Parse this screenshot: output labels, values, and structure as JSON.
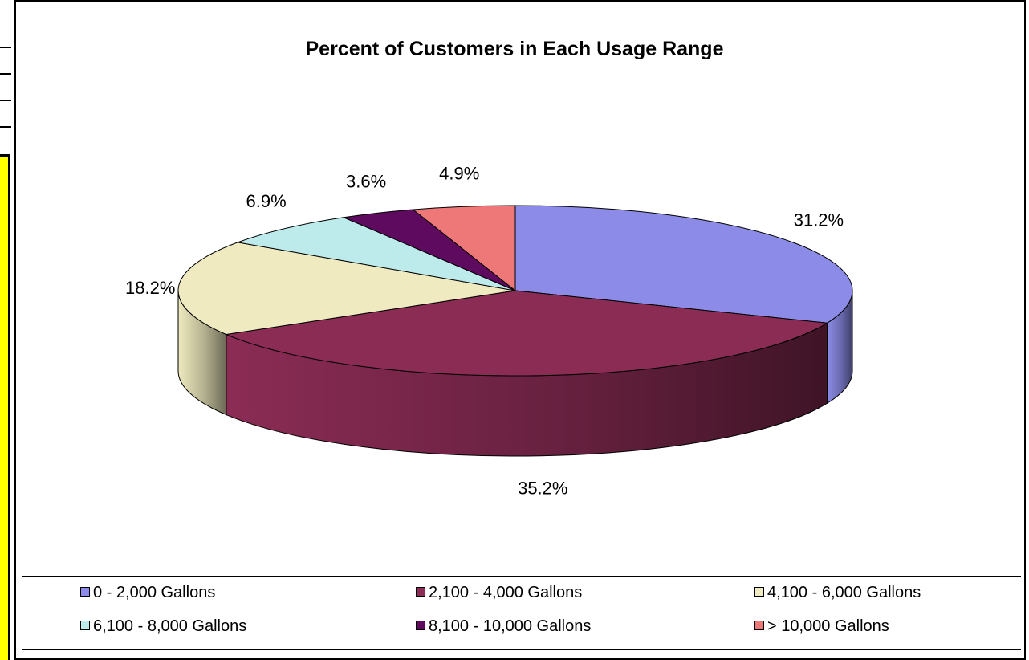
{
  "chart_data": {
    "type": "pie",
    "title": "Percent of Customers in Each Usage Range",
    "slices": [
      {
        "label": "0 - 2,000 Gallons",
        "value": 31.2,
        "display": "31.2%",
        "color": "#8c8ce8"
      },
      {
        "label": "2,100 - 4,000 Gallons",
        "value": 35.2,
        "display": "35.2%",
        "color": "#8b2c55"
      },
      {
        "label": "4,100 - 6,000 Gallons",
        "value": 18.2,
        "display": "18.2%",
        "color": "#efeabf"
      },
      {
        "label": "6,100 - 8,000 Gallons",
        "value": 6.9,
        "display": "6.9%",
        "color": "#bdebeb"
      },
      {
        "label": "8,100 - 10,000 Gallons",
        "value": 3.6,
        "display": "3.6%",
        "color": "#5e0a5e"
      },
      {
        "label": "> 10,000 Gallons",
        "value": 4.9,
        "display": "4.9%",
        "color": "#ee7777"
      }
    ],
    "style": "3d",
    "legend_position": "bottom"
  }
}
